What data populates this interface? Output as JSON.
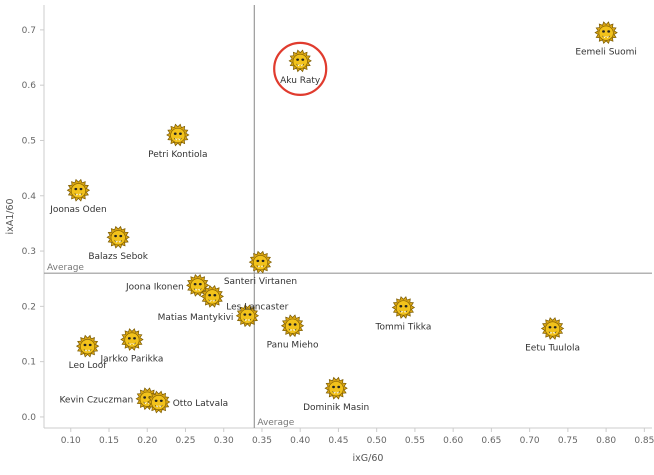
{
  "chart_data": {
    "type": "scatter",
    "xlabel": "ixG/60",
    "ylabel": "ixA1/60",
    "xlim": [
      0.065,
      0.86
    ],
    "ylim": [
      -0.02,
      0.745
    ],
    "x_ticks": [
      "0.10",
      "0.15",
      "0.20",
      "0.25",
      "0.30",
      "0.35",
      "0.40",
      "0.45",
      "0.50",
      "0.55",
      "0.60",
      "0.65",
      "0.70",
      "0.75",
      "0.80",
      "0.85"
    ],
    "y_ticks": [
      "0.0",
      "0.1",
      "0.2",
      "0.3",
      "0.4",
      "0.5",
      "0.6",
      "0.7"
    ],
    "grid": "x-ticks only, no gridlines",
    "average": {
      "x": 0.34,
      "y": 0.26,
      "x_label": "Average",
      "y_label": "Average"
    },
    "highlight": "Aku Raty",
    "highlight_color": "#e03b2e",
    "marker_icon": "yellow-lion-mascot-icon",
    "marker_color": "#f2c21b",
    "points": [
      {
        "name": "Eemeli Suomi",
        "x": 0.8,
        "y": 0.695,
        "label_pos": "below"
      },
      {
        "name": "Aku Raty",
        "x": 0.4,
        "y": 0.644,
        "label_pos": "below"
      },
      {
        "name": "Petri Kontiola",
        "x": 0.24,
        "y": 0.51,
        "label_pos": "below"
      },
      {
        "name": "Joonas Oden",
        "x": 0.11,
        "y": 0.41,
        "label_pos": "below"
      },
      {
        "name": "Balazs Sebok",
        "x": 0.162,
        "y": 0.325,
        "label_pos": "below"
      },
      {
        "name": "Santeri Virtanen",
        "x": 0.348,
        "y": 0.28,
        "label_pos": "below"
      },
      {
        "name": "Joona Ikonen",
        "x": 0.266,
        "y": 0.238,
        "label_pos": "left"
      },
      {
        "name": "Les Lancaster",
        "x": 0.285,
        "y": 0.218,
        "label_pos": "below-right"
      },
      {
        "name": "Matias Mantykivi",
        "x": 0.331,
        "y": 0.183,
        "label_pos": "left"
      },
      {
        "name": "Tommi Tikka",
        "x": 0.535,
        "y": 0.198,
        "label_pos": "below"
      },
      {
        "name": "Panu Mieho",
        "x": 0.39,
        "y": 0.165,
        "label_pos": "below"
      },
      {
        "name": "Eetu Tuulola",
        "x": 0.73,
        "y": 0.16,
        "label_pos": "below"
      },
      {
        "name": "Jarkko Parikka",
        "x": 0.18,
        "y": 0.14,
        "label_pos": "below"
      },
      {
        "name": "Leo Loof",
        "x": 0.122,
        "y": 0.128,
        "label_pos": "below"
      },
      {
        "name": "Dominik Masin",
        "x": 0.447,
        "y": 0.052,
        "label_pos": "below"
      },
      {
        "name": "Kevin Czuczman",
        "x": 0.2,
        "y": 0.033,
        "label_pos": "left"
      },
      {
        "name": "Otto Latvala",
        "x": 0.215,
        "y": 0.027,
        "label_pos": "right"
      }
    ]
  }
}
